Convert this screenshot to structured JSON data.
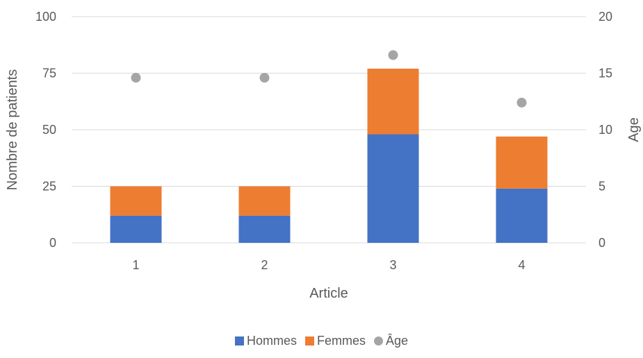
{
  "chart_data": {
    "type": "bar",
    "stacked": true,
    "categories": [
      "1",
      "2",
      "3",
      "4"
    ],
    "series": [
      {
        "name": "Hommes",
        "axis": "left",
        "type": "bar",
        "color": "#4472c4",
        "values": [
          12,
          12,
          48,
          24
        ]
      },
      {
        "name": "Femmes",
        "axis": "left",
        "type": "bar",
        "color": "#ed7d31",
        "values": [
          13,
          13,
          29,
          23
        ]
      },
      {
        "name": "Âge",
        "axis": "right",
        "type": "scatter",
        "color": "#a5a5a5",
        "values": [
          14.6,
          14.6,
          16.6,
          12.4
        ]
      }
    ],
    "xlabel": "Article",
    "ylabel": "Nombre de patients",
    "y2label": "Age",
    "ylim": [
      0,
      100
    ],
    "y2lim": [
      0,
      20
    ],
    "yticks": [
      "0",
      "25",
      "50",
      "75",
      "100"
    ],
    "y2ticks": [
      "0",
      "5",
      "10",
      "15",
      "20"
    ],
    "grid": true,
    "legend_position": "bottom"
  }
}
